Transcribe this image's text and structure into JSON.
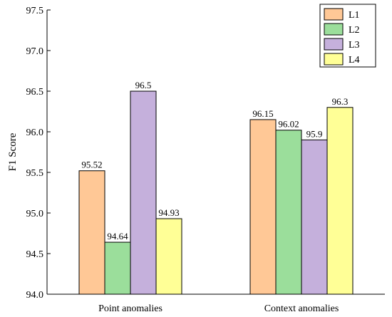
{
  "chart_data": {
    "type": "bar",
    "categories": [
      "Point anomalies",
      "Context anomalies"
    ],
    "series": [
      {
        "name": "L1",
        "values": [
          95.52,
          96.15
        ],
        "color": "#FFC896"
      },
      {
        "name": "L2",
        "values": [
          94.64,
          96.02
        ],
        "color": "#9BDE9B"
      },
      {
        "name": "L3",
        "values": [
          96.5,
          95.9
        ],
        "color": "#C5B0DC"
      },
      {
        "name": "L4",
        "values": [
          94.93,
          96.3
        ],
        "color": "#FFFF96"
      }
    ],
    "data_labels": [
      [
        "95.52",
        "96.15"
      ],
      [
        "94.64",
        "96.02"
      ],
      [
        "96.5",
        "95.9"
      ],
      [
        "94.93",
        "96.3"
      ]
    ],
    "title": "",
    "xlabel": "",
    "ylabel": "F1 Score",
    "ylim": [
      94.0,
      97.5
    ],
    "yticks": [
      "94.0",
      "94.5",
      "95.0",
      "95.5",
      "96.0",
      "96.5",
      "97.0",
      "97.5"
    ],
    "grid": false,
    "legend_position": "top-right"
  }
}
